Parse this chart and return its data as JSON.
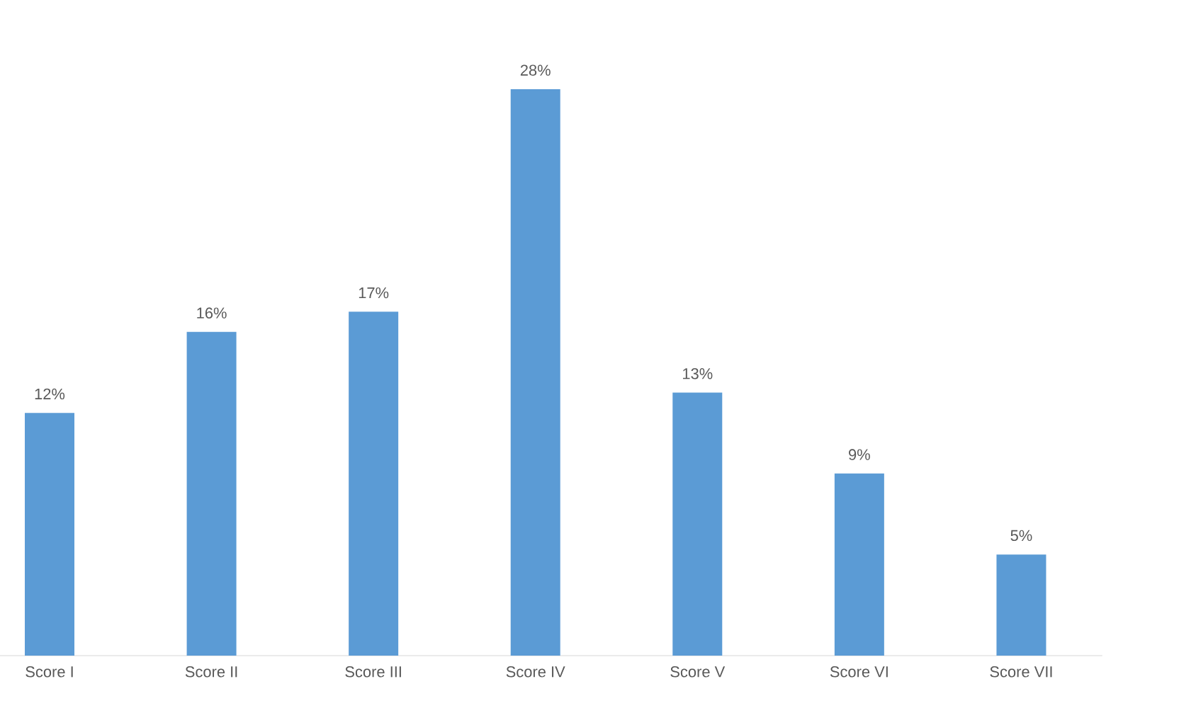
{
  "chart_data": {
    "type": "bar",
    "categories": [
      "Score I",
      "Score II",
      "Score III",
      "Score IV",
      "Score V",
      "Score VI",
      "Score VII"
    ],
    "values": [
      12,
      16,
      17,
      28,
      13,
      9,
      5
    ],
    "value_labels": [
      "12%",
      "16%",
      "17%",
      "28%",
      "13%",
      "9%",
      "5%"
    ],
    "color": "#5b9bd5"
  }
}
